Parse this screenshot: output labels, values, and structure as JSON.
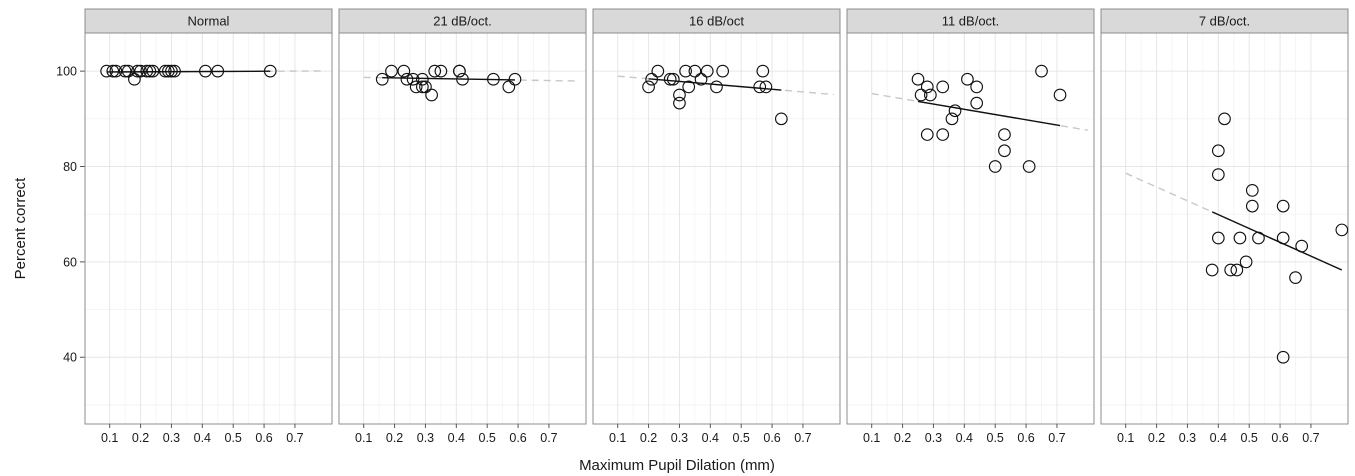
{
  "chart_data": {
    "type": "scatter",
    "xlabel": "Maximum Pupil Dilation (mm)",
    "ylabel": "Percent correct",
    "xlim": [
      0.02,
      0.82
    ],
    "ylim": [
      26,
      108
    ],
    "x_ticks": [
      0.1,
      0.2,
      0.3,
      0.4,
      0.5,
      0.6,
      0.7
    ],
    "y_ticks": [
      40,
      60,
      80,
      100
    ],
    "grid": true,
    "panels": [
      {
        "title": "Normal",
        "points": [
          [
            0.09,
            100
          ],
          [
            0.11,
            100
          ],
          [
            0.12,
            100
          ],
          [
            0.15,
            100
          ],
          [
            0.16,
            100
          ],
          [
            0.19,
            100
          ],
          [
            0.2,
            100
          ],
          [
            0.22,
            100
          ],
          [
            0.23,
            100
          ],
          [
            0.24,
            100
          ],
          [
            0.28,
            100
          ],
          [
            0.29,
            100
          ],
          [
            0.3,
            100
          ],
          [
            0.31,
            100
          ],
          [
            0.41,
            100
          ],
          [
            0.45,
            100
          ],
          [
            0.62,
            100
          ],
          [
            0.18,
            98.3
          ]
        ],
        "fit": {
          "slope": 0.3,
          "intercept": 99.8,
          "x_range": [
            0.09,
            0.62
          ]
        }
      },
      {
        "title": "21 dB/oct.",
        "points": [
          [
            0.16,
            98.3
          ],
          [
            0.19,
            100
          ],
          [
            0.23,
            100
          ],
          [
            0.24,
            98.3
          ],
          [
            0.26,
            98.3
          ],
          [
            0.27,
            96.7
          ],
          [
            0.29,
            98.3
          ],
          [
            0.29,
            96.7
          ],
          [
            0.3,
            96.7
          ],
          [
            0.32,
            95
          ],
          [
            0.33,
            100
          ],
          [
            0.35,
            100
          ],
          [
            0.41,
            100
          ],
          [
            0.41,
            100
          ],
          [
            0.42,
            98.3
          ],
          [
            0.52,
            98.3
          ],
          [
            0.57,
            96.7
          ],
          [
            0.59,
            98.3
          ]
        ],
        "fit": {
          "slope": -1.1,
          "intercept": 98.8,
          "x_range": [
            0.16,
            0.59
          ]
        }
      },
      {
        "title": "16 dB/oct",
        "points": [
          [
            0.2,
            96.7
          ],
          [
            0.21,
            98.3
          ],
          [
            0.23,
            100
          ],
          [
            0.27,
            98.3
          ],
          [
            0.28,
            98.3
          ],
          [
            0.3,
            95
          ],
          [
            0.3,
            93.3
          ],
          [
            0.32,
            100
          ],
          [
            0.33,
            96.7
          ],
          [
            0.35,
            100
          ],
          [
            0.37,
            98.3
          ],
          [
            0.39,
            100
          ],
          [
            0.42,
            96.7
          ],
          [
            0.44,
            100
          ],
          [
            0.56,
            96.7
          ],
          [
            0.57,
            100
          ],
          [
            0.58,
            96.7
          ],
          [
            0.63,
            90
          ]
        ],
        "fit": {
          "slope": -5.5,
          "intercept": 99.5,
          "x_range": [
            0.2,
            0.63
          ]
        }
      },
      {
        "title": "11 dB/oct.",
        "points": [
          [
            0.25,
            98.3
          ],
          [
            0.26,
            95
          ],
          [
            0.28,
            96.7
          ],
          [
            0.28,
            86.7
          ],
          [
            0.29,
            95
          ],
          [
            0.33,
            96.7
          ],
          [
            0.33,
            86.7
          ],
          [
            0.36,
            90
          ],
          [
            0.37,
            91.7
          ],
          [
            0.41,
            98.3
          ],
          [
            0.44,
            96.7
          ],
          [
            0.44,
            93.3
          ],
          [
            0.5,
            80
          ],
          [
            0.53,
            86.7
          ],
          [
            0.53,
            83.3
          ],
          [
            0.61,
            80
          ],
          [
            0.65,
            100
          ],
          [
            0.71,
            95
          ]
        ],
        "fit": {
          "slope": -11,
          "intercept": 96.4,
          "x_range": [
            0.25,
            0.71
          ]
        }
      },
      {
        "title": "7 dB/oct.",
        "points": [
          [
            0.38,
            58.3
          ],
          [
            0.4,
            83.3
          ],
          [
            0.4,
            78.3
          ],
          [
            0.4,
            65
          ],
          [
            0.42,
            90
          ],
          [
            0.44,
            58.3
          ],
          [
            0.46,
            58.3
          ],
          [
            0.47,
            65
          ],
          [
            0.49,
            60
          ],
          [
            0.51,
            75
          ],
          [
            0.51,
            71.7
          ],
          [
            0.53,
            65
          ],
          [
            0.61,
            71.7
          ],
          [
            0.61,
            65
          ],
          [
            0.65,
            56.7
          ],
          [
            0.67,
            63.3
          ],
          [
            0.61,
            40
          ],
          [
            0.8,
            66.7
          ]
        ],
        "fit": {
          "slope": -29,
          "intercept": 81.5,
          "x_range": [
            0.38,
            0.8
          ]
        }
      }
    ]
  }
}
